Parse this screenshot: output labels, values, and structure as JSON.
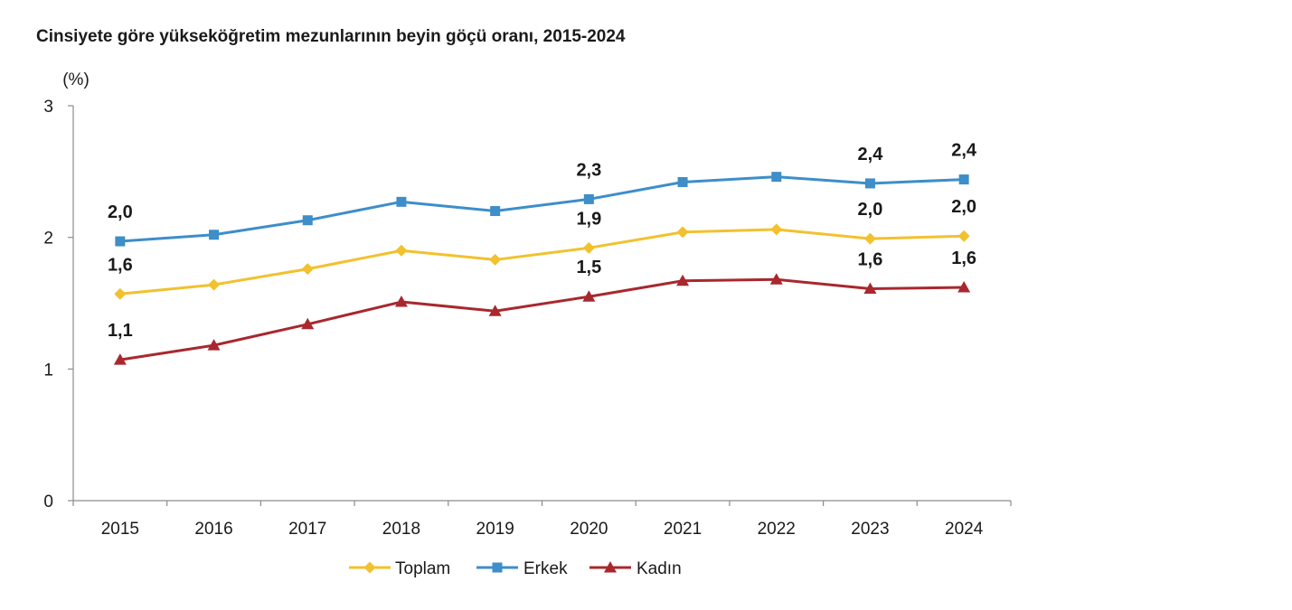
{
  "chart_data": {
    "type": "line",
    "title": "Cinsiyete göre yükseköğretim mezunlarının beyin göçü oranı, 2015-2024",
    "unit_label": "(%)",
    "xlabel": "",
    "ylabel": "(%)",
    "ylim": [
      0,
      3
    ],
    "yticks": [
      "0",
      "1",
      "2",
      "3"
    ],
    "categories": [
      "2015",
      "2016",
      "2017",
      "2018",
      "2019",
      "2020",
      "2021",
      "2022",
      "2023",
      "2024"
    ],
    "legend_position": "bottom",
    "series": [
      {
        "name": "Toplam",
        "color": "#f2c12e",
        "marker": "diamond",
        "values": [
          1.57,
          1.64,
          1.76,
          1.9,
          1.83,
          1.92,
          2.04,
          2.06,
          1.99,
          2.01
        ],
        "labels": [
          "1,6",
          null,
          null,
          null,
          null,
          "1,9",
          null,
          null,
          "2,0",
          "2,0"
        ]
      },
      {
        "name": "Erkek",
        "color": "#3d8ec9",
        "marker": "square",
        "values": [
          1.97,
          2.02,
          2.13,
          2.27,
          2.2,
          2.29,
          2.42,
          2.46,
          2.41,
          2.44
        ],
        "labels": [
          "2,0",
          null,
          null,
          null,
          null,
          "2,3",
          null,
          null,
          "2,4",
          "2,4"
        ]
      },
      {
        "name": "Kadın",
        "color": "#a8282e",
        "marker": "triangle",
        "values": [
          1.07,
          1.18,
          1.34,
          1.51,
          1.44,
          1.55,
          1.67,
          1.68,
          1.61,
          1.62
        ],
        "labels": [
          "1,1",
          null,
          null,
          null,
          null,
          "1,5",
          null,
          null,
          "1,6",
          "1,6"
        ]
      }
    ]
  }
}
